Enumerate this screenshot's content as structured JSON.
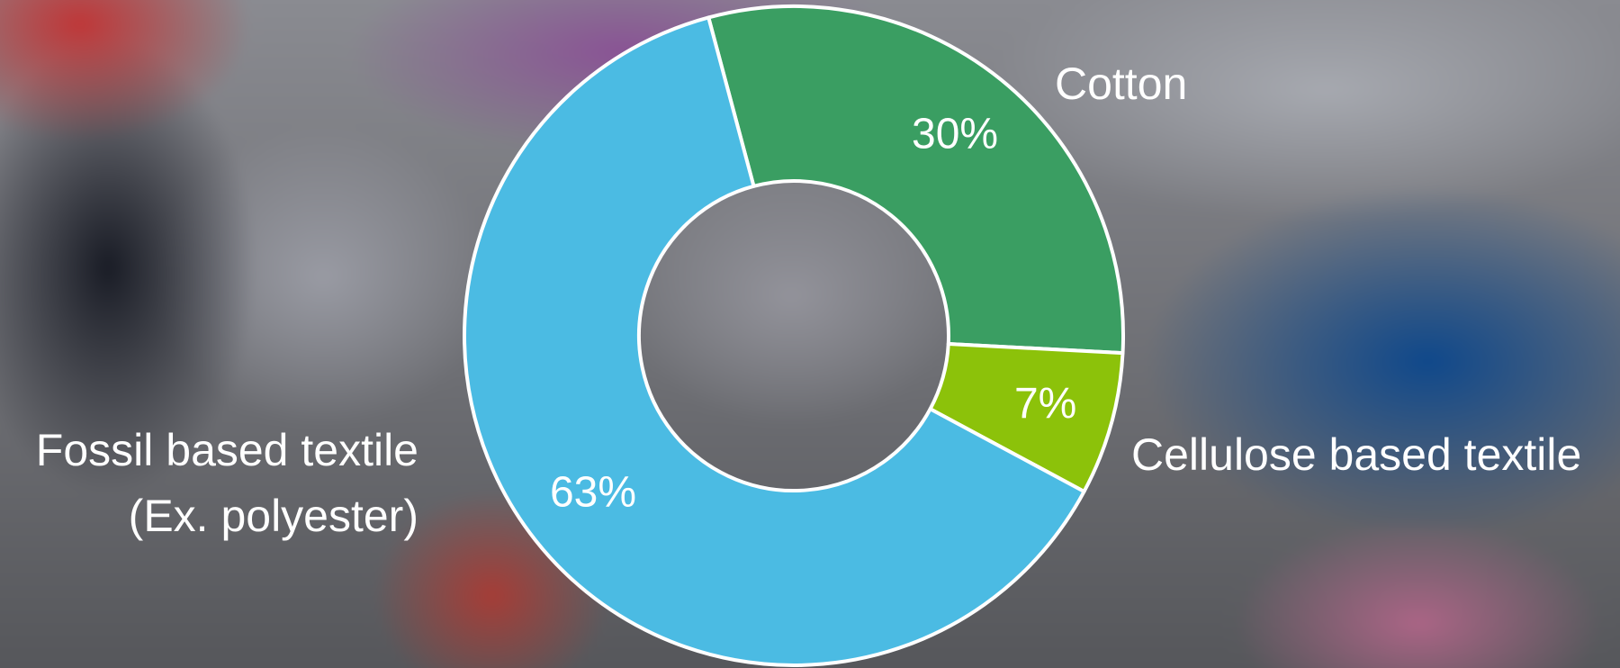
{
  "chart_data": {
    "type": "pie",
    "categories": [
      "Cotton",
      "Cellulose based textile",
      "Fossil based textile (Ex. polyester)"
    ],
    "values": [
      30,
      7,
      63
    ],
    "value_labels": [
      "30%",
      "7%",
      "63%"
    ],
    "category_lines": [
      [
        "Cotton"
      ],
      [
        "Cellulose based textile"
      ],
      [
        "Fossil based textile",
        "(Ex. polyester)"
      ]
    ],
    "colors": [
      "#3a9e62",
      "#8cc20a",
      "#4bbbe3"
    ],
    "donut": true,
    "legend": "none",
    "title": ""
  }
}
